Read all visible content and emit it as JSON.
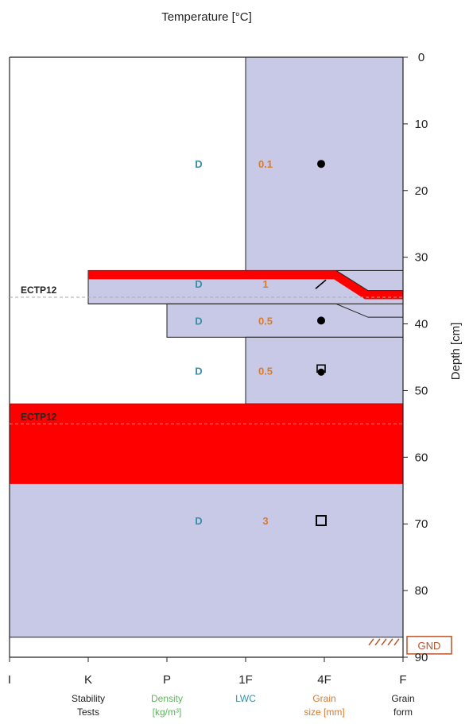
{
  "colors": {
    "layer_fill": "#c8c9e6",
    "unstable_fill": "#ff0000",
    "axis": "#222222",
    "test_line": "#aaaaaa",
    "lwc_text": "#3a8fa8",
    "grain_text": "#d97a2c",
    "density_text": "#5cb85c",
    "gnd": "#b5542a"
  },
  "chart_data": {
    "type": "snow-profile",
    "top_title": "Temperature [°C]",
    "right_axis_label": "Depth [cm]",
    "depth_range": [
      0,
      90
    ],
    "depth_ticks": [
      "0",
      "10",
      "20",
      "30",
      "40",
      "50",
      "60",
      "70",
      "80",
      "90"
    ],
    "hardness_ticks": [
      "I",
      "K",
      "P",
      "1F",
      "4F",
      "F"
    ],
    "column_labels": [
      {
        "line1": "Stability",
        "line2": "Tests",
        "color": "#222222"
      },
      {
        "line1": "Density",
        "line2": "[kg/m³]",
        "color": "#5cb85c"
      },
      {
        "line1": "LWC",
        "line2": "",
        "color": "#3a8fa8"
      },
      {
        "line1": "Grain",
        "line2": "size [mm]",
        "color": "#d97a2c"
      },
      {
        "line1": "Grain",
        "line2": "form",
        "color": "#222222"
      }
    ],
    "layers": [
      {
        "top": 0,
        "bottom": 32,
        "hardness": 2
      },
      {
        "top": 32,
        "bottom": 37,
        "hardness": 4
      },
      {
        "top": 37,
        "bottom": 42,
        "hardness": 3
      },
      {
        "top": 42,
        "bottom": 52,
        "hardness": 2
      },
      {
        "top": 52,
        "bottom": 87,
        "hardness": 5
      }
    ],
    "unstable_bands": [
      {
        "top": 52,
        "bottom": 64,
        "from_hardness": 5
      }
    ],
    "observations": [
      {
        "depth": 16,
        "lwc": "D",
        "grain_size": "0.1",
        "grain_form": "dot"
      },
      {
        "depth": 34,
        "lwc": "D",
        "grain_size": "1",
        "grain_form": "slash"
      },
      {
        "depth": 39.5,
        "lwc": "D",
        "grain_size": "0.5",
        "grain_form": "dot"
      },
      {
        "depth": 47,
        "lwc": "D",
        "grain_size": "0.5",
        "grain_form": "square-dot"
      },
      {
        "depth": 69.5,
        "lwc": "D",
        "grain_size": "3",
        "grain_form": "square"
      }
    ],
    "stability_tests": [
      {
        "depth": 36,
        "label": "ECTP12"
      },
      {
        "depth": 55,
        "label": "ECTP12"
      }
    ],
    "ground_label": "GND",
    "ground_depth": 87
  }
}
